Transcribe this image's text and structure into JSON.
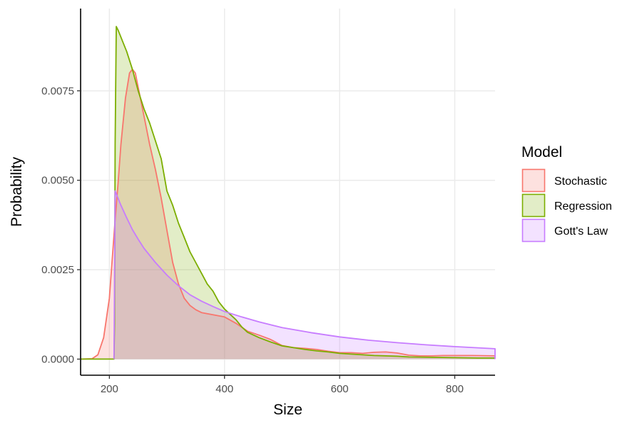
{
  "chart_data": {
    "type": "area",
    "title": "",
    "xlabel": "Size",
    "ylabel": "Probability",
    "xlim": [
      150,
      870
    ],
    "ylim": [
      -0.00045,
      0.0098
    ],
    "x_ticks": [
      200,
      400,
      600,
      800
    ],
    "x_tick_labels": [
      "200",
      "400",
      "600",
      "800"
    ],
    "y_ticks": [
      0,
      0.0025,
      0.005,
      0.0075
    ],
    "y_tick_labels": [
      "0.0000",
      "0.0025",
      "0.0050",
      "0.0075"
    ],
    "grid": true,
    "legend": {
      "title": "Model",
      "position": "right"
    },
    "series": [
      {
        "name": "Stochastic",
        "color": "#F8766D",
        "fill": "#F8766D",
        "fill_opacity": 0.22,
        "points": [
          [
            150,
            0
          ],
          [
            170,
            1e-05
          ],
          [
            180,
            0.00012
          ],
          [
            190,
            0.0006
          ],
          [
            200,
            0.0017
          ],
          [
            210,
            0.0039
          ],
          [
            215,
            0.0049
          ],
          [
            220,
            0.006
          ],
          [
            228,
            0.0073
          ],
          [
            235,
            0.008
          ],
          [
            240,
            0.0081
          ],
          [
            245,
            0.008
          ],
          [
            250,
            0.0076
          ],
          [
            260,
            0.0068
          ],
          [
            270,
            0.006
          ],
          [
            280,
            0.0053
          ],
          [
            290,
            0.0045
          ],
          [
            300,
            0.0036
          ],
          [
            310,
            0.0027
          ],
          [
            320,
            0.0021
          ],
          [
            330,
            0.0017
          ],
          [
            340,
            0.0015
          ],
          [
            350,
            0.00138
          ],
          [
            360,
            0.0013
          ],
          [
            380,
            0.00124
          ],
          [
            400,
            0.00118
          ],
          [
            420,
            0.001
          ],
          [
            440,
            0.00078
          ],
          [
            460,
            0.00067
          ],
          [
            480,
            0.00055
          ],
          [
            500,
            0.00038
          ],
          [
            520,
            0.00032
          ],
          [
            540,
            0.0003
          ],
          [
            560,
            0.00027
          ],
          [
            580,
            0.00022
          ],
          [
            600,
            0.00018
          ],
          [
            620,
            0.00018
          ],
          [
            640,
            0.00016
          ],
          [
            660,
            0.00019
          ],
          [
            680,
            0.0002
          ],
          [
            700,
            0.00017
          ],
          [
            720,
            0.00011
          ],
          [
            740,
            9e-05
          ],
          [
            760,
            9e-05
          ],
          [
            780,
            0.0001
          ],
          [
            800,
            0.0001
          ],
          [
            830,
            0.0001
          ],
          [
            870,
            9e-05
          ]
        ]
      },
      {
        "name": "Regression",
        "color": "#7CAE00",
        "fill": "#7CAE00",
        "fill_opacity": 0.22,
        "points": [
          [
            150,
            0
          ],
          [
            208,
            0
          ],
          [
            209,
            0.001
          ],
          [
            210,
            0.006
          ],
          [
            212,
            0.0093
          ],
          [
            215,
            0.0092
          ],
          [
            220,
            0.009
          ],
          [
            225,
            0.0088
          ],
          [
            230,
            0.0086
          ],
          [
            240,
            0.0081
          ],
          [
            250,
            0.0075
          ],
          [
            260,
            0.007
          ],
          [
            270,
            0.0066
          ],
          [
            280,
            0.0061
          ],
          [
            290,
            0.0056
          ],
          [
            300,
            0.0047
          ],
          [
            310,
            0.0043
          ],
          [
            320,
            0.0038
          ],
          [
            330,
            0.0034
          ],
          [
            340,
            0.003
          ],
          [
            350,
            0.0027
          ],
          [
            360,
            0.0024
          ],
          [
            370,
            0.0021
          ],
          [
            380,
            0.0019
          ],
          [
            390,
            0.0016
          ],
          [
            400,
            0.0014
          ],
          [
            410,
            0.00125
          ],
          [
            420,
            0.0011
          ],
          [
            430,
            0.0009
          ],
          [
            440,
            0.00075
          ],
          [
            460,
            0.0006
          ],
          [
            480,
            0.00048
          ],
          [
            500,
            0.00037
          ],
          [
            520,
            0.00032
          ],
          [
            540,
            0.00027
          ],
          [
            560,
            0.00023
          ],
          [
            580,
            0.0002
          ],
          [
            600,
            0.00016
          ],
          [
            620,
            0.00014
          ],
          [
            640,
            0.00012
          ],
          [
            660,
            0.0001
          ],
          [
            680,
            9e-05
          ],
          [
            700,
            8e-05
          ],
          [
            720,
            6e-05
          ],
          [
            760,
            5e-05
          ],
          [
            800,
            4e-05
          ],
          [
            840,
            3e-05
          ],
          [
            870,
            3e-05
          ]
        ]
      },
      {
        "name": "Gott's Law",
        "color": "#C77CFF",
        "fill": "#C77CFF",
        "fill_opacity": 0.22,
        "points": [
          [
            208,
            0
          ],
          [
            210,
            0.0047
          ],
          [
            220,
            0.0043
          ],
          [
            230,
            0.00395
          ],
          [
            240,
            0.00362
          ],
          [
            250,
            0.00335
          ],
          [
            260,
            0.0031
          ],
          [
            280,
            0.0027
          ],
          [
            300,
            0.00235
          ],
          [
            320,
            0.00205
          ],
          [
            340,
            0.0018
          ],
          [
            360,
            0.00162
          ],
          [
            380,
            0.00147
          ],
          [
            400,
            0.00133
          ],
          [
            430,
            0.00118
          ],
          [
            460,
            0.00104
          ],
          [
            500,
            0.00088
          ],
          [
            550,
            0.00074
          ],
          [
            600,
            0.00062
          ],
          [
            650,
            0.00053
          ],
          [
            700,
            0.00046
          ],
          [
            750,
            0.0004
          ],
          [
            800,
            0.00035
          ],
          [
            870,
            0.00029
          ],
          [
            870,
            0
          ]
        ]
      }
    ]
  }
}
